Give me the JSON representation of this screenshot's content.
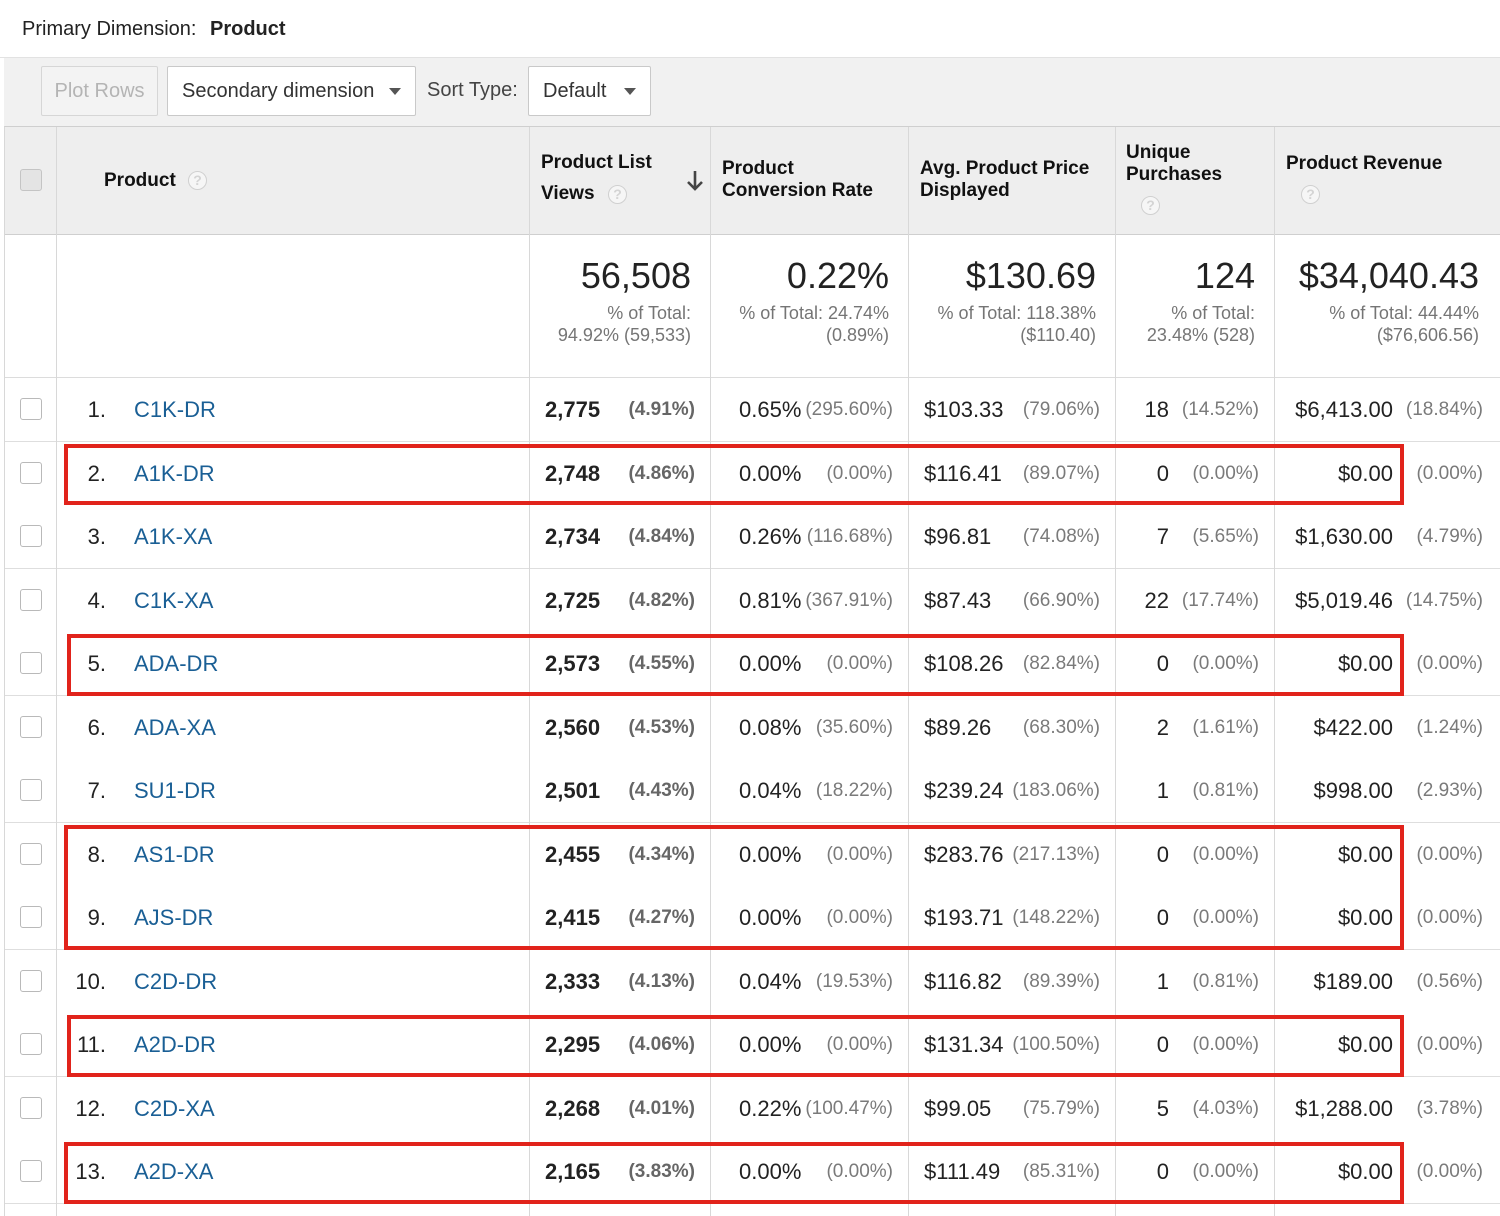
{
  "primary_dimension": {
    "label": "Primary Dimension:",
    "value": "Product"
  },
  "toolbar": {
    "plot_rows": "Plot Rows",
    "secondary_dimension": "Secondary dimension",
    "sort_type_label": "Sort Type:",
    "sort_type_value": "Default"
  },
  "headers": {
    "product": "Product",
    "product_list_views_line1": "Product List",
    "product_list_views_line2": "Views",
    "product_conversion_rate_line1": "Product",
    "product_conversion_rate_line2": "Conversion Rate",
    "avg_price_line1": "Avg. Product Price",
    "avg_price_line2": "Displayed",
    "unique_purchases_line1": "Unique",
    "unique_purchases_line2": "Purchases",
    "product_revenue": "Product Revenue",
    "help_glyph": "?"
  },
  "totals": {
    "views": {
      "value": "56,508",
      "sub1": "% of Total:",
      "sub2": "94.92% (59,533)"
    },
    "conversion": {
      "value": "0.22%",
      "sub1": "% of Total: 24.74%",
      "sub2": "(0.89%)"
    },
    "avg_price": {
      "value": "$130.69",
      "sub1": "% of Total: 118.38%",
      "sub2": "($110.40)"
    },
    "purchases": {
      "value": "124",
      "sub1": "% of Total:",
      "sub2": "23.48% (528)"
    },
    "revenue": {
      "value": "$34,040.43",
      "sub1": "% of Total: 44.44%",
      "sub2": "($76,606.56)"
    }
  },
  "rows": [
    {
      "idx": "1.",
      "product": "C1K-DR",
      "views": "2,775",
      "views_pct": "(4.91%)",
      "conv": "0.65%",
      "conv_pct": "(295.60%)",
      "price": "$103.33",
      "price_pct": "(79.06%)",
      "purch": "18",
      "purch_pct": "(14.52%)",
      "rev": "$6,413.00",
      "rev_pct": "(18.84%)"
    },
    {
      "idx": "2.",
      "product": "A1K-DR",
      "views": "2,748",
      "views_pct": "(4.86%)",
      "conv": "0.00%",
      "conv_pct": "(0.00%)",
      "price": "$116.41",
      "price_pct": "(89.07%)",
      "purch": "0",
      "purch_pct": "(0.00%)",
      "rev": "$0.00",
      "rev_pct": "(0.00%)"
    },
    {
      "idx": "3.",
      "product": "A1K-XA",
      "views": "2,734",
      "views_pct": "(4.84%)",
      "conv": "0.26%",
      "conv_pct": "(116.68%)",
      "price": "$96.81",
      "price_pct": "(74.08%)",
      "purch": "7",
      "purch_pct": "(5.65%)",
      "rev": "$1,630.00",
      "rev_pct": "(4.79%)"
    },
    {
      "idx": "4.",
      "product": "C1K-XA",
      "views": "2,725",
      "views_pct": "(4.82%)",
      "conv": "0.81%",
      "conv_pct": "(367.91%)",
      "price": "$87.43",
      "price_pct": "(66.90%)",
      "purch": "22",
      "purch_pct": "(17.74%)",
      "rev": "$5,019.46",
      "rev_pct": "(14.75%)"
    },
    {
      "idx": "5.",
      "product": "ADA-DR",
      "views": "2,573",
      "views_pct": "(4.55%)",
      "conv": "0.00%",
      "conv_pct": "(0.00%)",
      "price": "$108.26",
      "price_pct": "(82.84%)",
      "purch": "0",
      "purch_pct": "(0.00%)",
      "rev": "$0.00",
      "rev_pct": "(0.00%)"
    },
    {
      "idx": "6.",
      "product": "ADA-XA",
      "views": "2,560",
      "views_pct": "(4.53%)",
      "conv": "0.08%",
      "conv_pct": "(35.60%)",
      "price": "$89.26",
      "price_pct": "(68.30%)",
      "purch": "2",
      "purch_pct": "(1.61%)",
      "rev": "$422.00",
      "rev_pct": "(1.24%)"
    },
    {
      "idx": "7.",
      "product": "SU1-DR",
      "views": "2,501",
      "views_pct": "(4.43%)",
      "conv": "0.04%",
      "conv_pct": "(18.22%)",
      "price": "$239.24",
      "price_pct": "(183.06%)",
      "purch": "1",
      "purch_pct": "(0.81%)",
      "rev": "$998.00",
      "rev_pct": "(2.93%)"
    },
    {
      "idx": "8.",
      "product": "AS1-DR",
      "views": "2,455",
      "views_pct": "(4.34%)",
      "conv": "0.00%",
      "conv_pct": "(0.00%)",
      "price": "$283.76",
      "price_pct": "(217.13%)",
      "purch": "0",
      "purch_pct": "(0.00%)",
      "rev": "$0.00",
      "rev_pct": "(0.00%)"
    },
    {
      "idx": "9.",
      "product": "AJS-DR",
      "views": "2,415",
      "views_pct": "(4.27%)",
      "conv": "0.00%",
      "conv_pct": "(0.00%)",
      "price": "$193.71",
      "price_pct": "(148.22%)",
      "purch": "0",
      "purch_pct": "(0.00%)",
      "rev": "$0.00",
      "rev_pct": "(0.00%)"
    },
    {
      "idx": "10.",
      "product": "C2D-DR",
      "views": "2,333",
      "views_pct": "(4.13%)",
      "conv": "0.04%",
      "conv_pct": "(19.53%)",
      "price": "$116.82",
      "price_pct": "(89.39%)",
      "purch": "1",
      "purch_pct": "(0.81%)",
      "rev": "$189.00",
      "rev_pct": "(0.56%)"
    },
    {
      "idx": "11.",
      "product": "A2D-DR",
      "views": "2,295",
      "views_pct": "(4.06%)",
      "conv": "0.00%",
      "conv_pct": "(0.00%)",
      "price": "$131.34",
      "price_pct": "(100.50%)",
      "purch": "0",
      "purch_pct": "(0.00%)",
      "rev": "$0.00",
      "rev_pct": "(0.00%)"
    },
    {
      "idx": "12.",
      "product": "C2D-XA",
      "views": "2,268",
      "views_pct": "(4.01%)",
      "conv": "0.22%",
      "conv_pct": "(100.47%)",
      "price": "$99.05",
      "price_pct": "(75.79%)",
      "purch": "5",
      "purch_pct": "(4.03%)",
      "rev": "$1,288.00",
      "rev_pct": "(3.78%)"
    },
    {
      "idx": "13.",
      "product": "A2D-XA",
      "views": "2,165",
      "views_pct": "(3.83%)",
      "conv": "0.00%",
      "conv_pct": "(0.00%)",
      "price": "$111.49",
      "price_pct": "(85.31%)",
      "purch": "0",
      "purch_pct": "(0.00%)",
      "rev": "$0.00",
      "rev_pct": "(0.00%)"
    }
  ],
  "highlight_color": "#e1231b",
  "link_color": "#1a5f95"
}
